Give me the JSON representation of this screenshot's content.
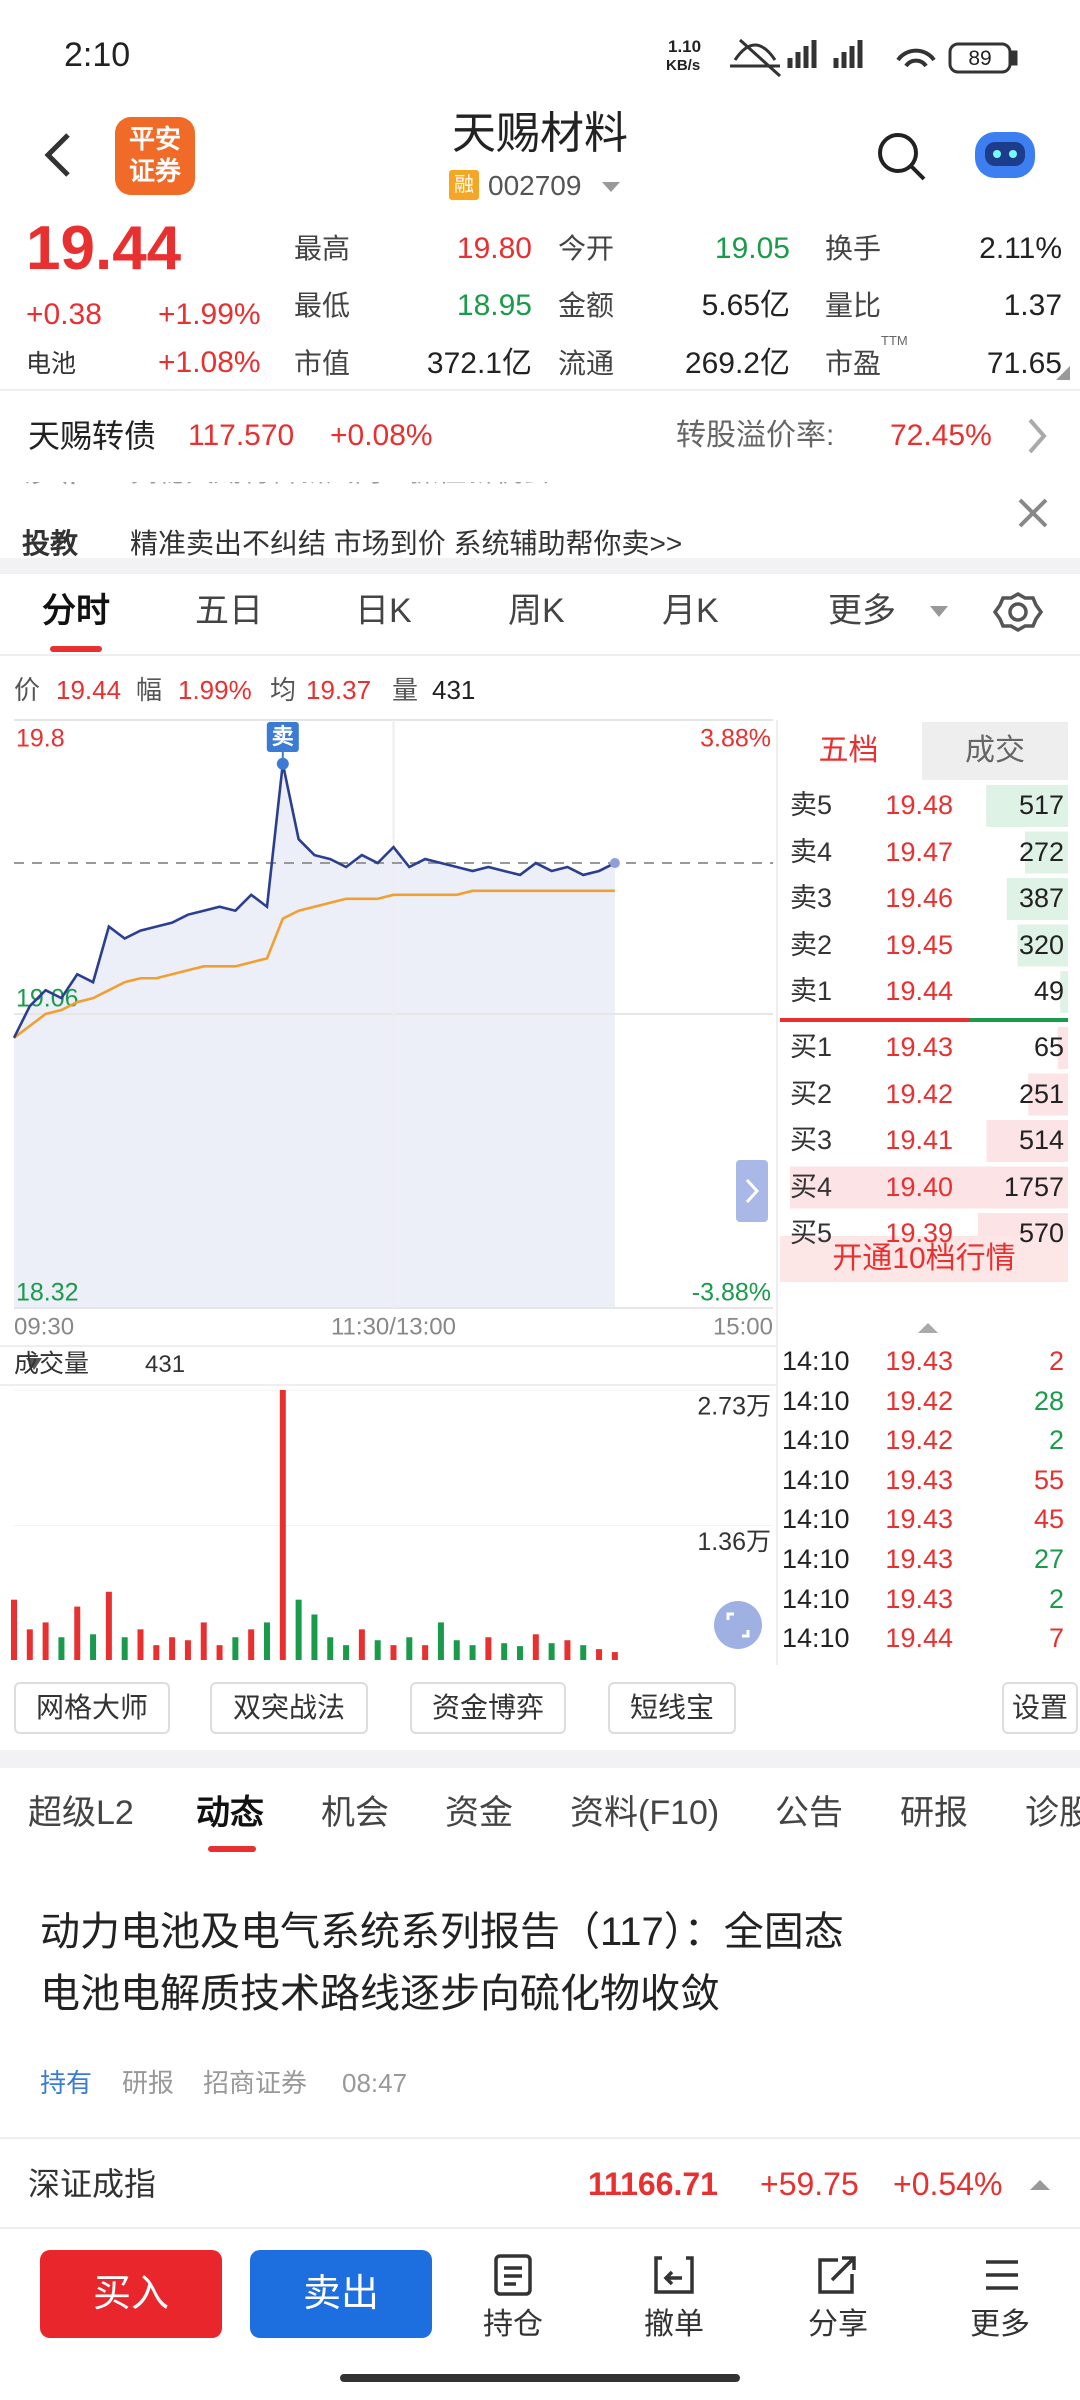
{
  "status_bar": {
    "time": "2:10",
    "net_speed": "1.10",
    "net_unit": "KB/s",
    "battery": "89"
  },
  "header": {
    "logo": [
      "平安",
      "证券"
    ],
    "title": "天赐材料",
    "badge": "融",
    "code": "002709"
  },
  "quote": {
    "price": "19.44",
    "change": "+0.38",
    "change_pct": "+1.99%",
    "sector": "电池",
    "sector_pct": "+1.08%",
    "stats": [
      [
        {
          "label": "最高",
          "value": "19.80",
          "color": "#e93030"
        },
        {
          "label": "今开",
          "value": "19.05",
          "color": "#1a9b4b"
        },
        {
          "label": "换手",
          "value": "2.11%",
          "color": "#222222"
        }
      ],
      [
        {
          "label": "最低",
          "value": "18.95",
          "color": "#1a9b4b"
        },
        {
          "label": "金额",
          "value": "5.65亿",
          "color": "#222222"
        },
        {
          "label": "量比",
          "value": "1.37",
          "color": "#222222"
        }
      ],
      [
        {
          "label": "市值",
          "value": "372.1亿",
          "color": "#222222"
        },
        {
          "label": "流通",
          "value": "269.2亿",
          "color": "#222222"
        },
        {
          "label": "市盈",
          "sup": "TTM",
          "value": "71.65",
          "color": "#222222"
        }
      ]
    ]
  },
  "bond": {
    "name": "天赐转债",
    "price": "117.570",
    "change": "+0.08%",
    "premium_label": "转股溢价率:",
    "premium": "72.45%"
  },
  "ticker": [
    {
      "tag": "诊断",
      "text": "揭秘天赐材料新风向：抓住新机会！"
    },
    {
      "tag": "投教",
      "text": "精准卖出不纠结    市场到价    系统辅助帮你卖>>"
    }
  ],
  "chart_tabs": [
    "分时",
    "五日",
    "日K",
    "周K",
    "月K",
    "更多"
  ],
  "info": [
    {
      "label": "价",
      "value": "19.44"
    },
    {
      "label": "幅",
      "value": "1.99%"
    },
    {
      "label": "均",
      "value": "19.37"
    },
    {
      "label": "量",
      "value": "431"
    }
  ],
  "chart_data": [
    {
      "type": "line",
      "x": [
        "09:30",
        "09:35",
        "09:40",
        "09:45",
        "09:50",
        "09:55",
        "10:00",
        "10:05",
        "10:10",
        "10:15",
        "10:20",
        "10:25",
        "10:30",
        "10:35",
        "10:40",
        "10:45",
        "10:50",
        "10:55",
        "11:00",
        "11:05",
        "11:10",
        "11:15",
        "11:20",
        "11:25",
        "11:30",
        "13:05",
        "13:10",
        "13:15",
        "13:20",
        "13:25",
        "13:30",
        "13:35",
        "13:40",
        "13:45",
        "13:50",
        "13:55",
        "14:00",
        "14:05",
        "14:10"
      ],
      "series": [
        {
          "color": "#2b3f8e",
          "values": [
            19.0,
            19.08,
            19.12,
            19.1,
            19.16,
            19.14,
            19.28,
            19.25,
            19.27,
            19.28,
            19.29,
            19.31,
            19.32,
            19.33,
            19.32,
            19.36,
            19.33,
            19.69,
            19.5,
            19.46,
            19.45,
            19.43,
            19.46,
            19.44,
            19.48,
            19.43,
            19.45,
            19.44,
            19.43,
            19.42,
            19.43,
            19.42,
            19.41,
            19.44,
            19.42,
            19.43,
            19.41,
            19.42,
            19.44
          ]
        },
        {
          "color": "#f0a030",
          "values": [
            19.0,
            19.03,
            19.06,
            19.07,
            19.09,
            19.1,
            19.12,
            19.14,
            19.15,
            19.15,
            19.16,
            19.17,
            19.18,
            19.18,
            19.18,
            19.19,
            19.2,
            19.3,
            19.32,
            19.33,
            19.34,
            19.35,
            19.35,
            19.35,
            19.36,
            19.36,
            19.36,
            19.36,
            19.36,
            19.37,
            19.37,
            19.37,
            19.37,
            19.37,
            19.37,
            19.37,
            19.37,
            19.37,
            19.37
          ]
        }
      ],
      "fill": "#eceef8",
      "xlim": [
        "09:30",
        "15:00"
      ],
      "xticks": [
        "09:30",
        "11:30/13:00",
        "15:00"
      ],
      "ylim": [
        18.32,
        19.8
      ],
      "yticks": [
        18.32,
        19.06,
        19.8
      ],
      "y2lim": [
        -3.88,
        3.88
      ],
      "y2ticks": [
        {
          "value": -3.88,
          "label": "-3.88%"
        },
        {
          "value": 3.88,
          "label": "3.88%"
        }
      ],
      "annotations": [
        {
          "x": "10:55",
          "label": "卖"
        }
      ]
    },
    {
      "type": "bar",
      "title": "成交量",
      "current": "431",
      "x": [
        "09:30",
        "09:35",
        "09:40",
        "09:45",
        "09:50",
        "09:55",
        "10:00",
        "10:05",
        "10:10",
        "10:15",
        "10:20",
        "10:25",
        "10:30",
        "10:35",
        "10:40",
        "10:45",
        "10:50",
        "10:55",
        "11:00",
        "11:05",
        "11:10",
        "11:15",
        "11:20",
        "11:25",
        "11:30",
        "13:05",
        "13:10",
        "13:15",
        "13:20",
        "13:25",
        "13:30",
        "13:35",
        "13:40",
        "13:45",
        "13:50",
        "13:55",
        "14:00",
        "14:05",
        "14:10"
      ],
      "values": [
        6100,
        3100,
        3800,
        2300,
        5400,
        2600,
        6900,
        2300,
        3100,
        1500,
        2300,
        2000,
        3800,
        1500,
        2300,
        3100,
        3800,
        27300,
        6100,
        4600,
        2300,
        1500,
        3100,
        2000,
        1500,
        2300,
        1500,
        3800,
        2000,
        1500,
        2300,
        1700,
        1400,
        2600,
        1700,
        2000,
        1500,
        1100,
        800
      ],
      "ylim": [
        0,
        27300
      ],
      "yticks": [
        {
          "value": 13600,
          "label": "1.36万"
        },
        {
          "value": 27300,
          "label": "2.73万"
        }
      ],
      "up_color": "#e93030",
      "down_color": "#1a9b4b"
    }
  ],
  "order_book": {
    "tabs": [
      "五档",
      "成交"
    ],
    "asks": [
      {
        "label": "卖5",
        "price": "19.48",
        "volume": 517
      },
      {
        "label": "卖4",
        "price": "19.47",
        "volume": 272
      },
      {
        "label": "卖3",
        "price": "19.46",
        "volume": 387
      },
      {
        "label": "卖2",
        "price": "19.45",
        "volume": 320
      },
      {
        "label": "卖1",
        "price": "19.44",
        "volume": 49
      }
    ],
    "bids": [
      {
        "label": "买1",
        "price": "19.43",
        "volume": 65
      },
      {
        "label": "买2",
        "price": "19.42",
        "volume": 251
      },
      {
        "label": "买3",
        "price": "19.41",
        "volume": 514
      },
      {
        "label": "买4",
        "price": "19.40",
        "volume": 1757
      },
      {
        "label": "买5",
        "price": "19.39",
        "volume": 570
      }
    ],
    "upgrade": "开通10档行情"
  },
  "trades": [
    {
      "time": "14:10",
      "price": "19.43",
      "volume": "2",
      "color": "#e93030"
    },
    {
      "time": "14:10",
      "price": "19.42",
      "volume": "28",
      "color": "#1a9b4b"
    },
    {
      "time": "14:10",
      "price": "19.42",
      "volume": "2",
      "color": "#1a9b4b"
    },
    {
      "time": "14:10",
      "price": "19.43",
      "volume": "55",
      "color": "#e93030"
    },
    {
      "time": "14:10",
      "price": "19.43",
      "volume": "45",
      "color": "#e93030"
    },
    {
      "time": "14:10",
      "price": "19.43",
      "volume": "27",
      "color": "#1a9b4b"
    },
    {
      "time": "14:10",
      "price": "19.43",
      "volume": "2",
      "color": "#1a9b4b"
    },
    {
      "time": "14:10",
      "price": "19.44",
      "volume": "7",
      "color": "#e93030"
    }
  ],
  "tools": [
    "网格大师",
    "双突战法",
    "资金博弈",
    "短线宝"
  ],
  "settings": "设置",
  "content_tabs": [
    "超级L2",
    "动态",
    "机会",
    "资金",
    "资料(F10)",
    "公告",
    "研报",
    "诊股"
  ],
  "news": {
    "title_lines": [
      "动力电池及电气系统系列报告（117）：全固态",
      "电池电解质技术路线逐步向硫化物收敛"
    ],
    "tag": "持有",
    "category": "研报",
    "source": "招商证券",
    "time": "08:47"
  },
  "index_bar": {
    "name": "深证成指",
    "value": "11166.71",
    "change": "+59.75",
    "change_pct": "+0.54%"
  },
  "bottom_bar": {
    "buy": "买入",
    "sell": "卖出",
    "actions": [
      "持仓",
      "撤单",
      "分享",
      "更多"
    ]
  }
}
